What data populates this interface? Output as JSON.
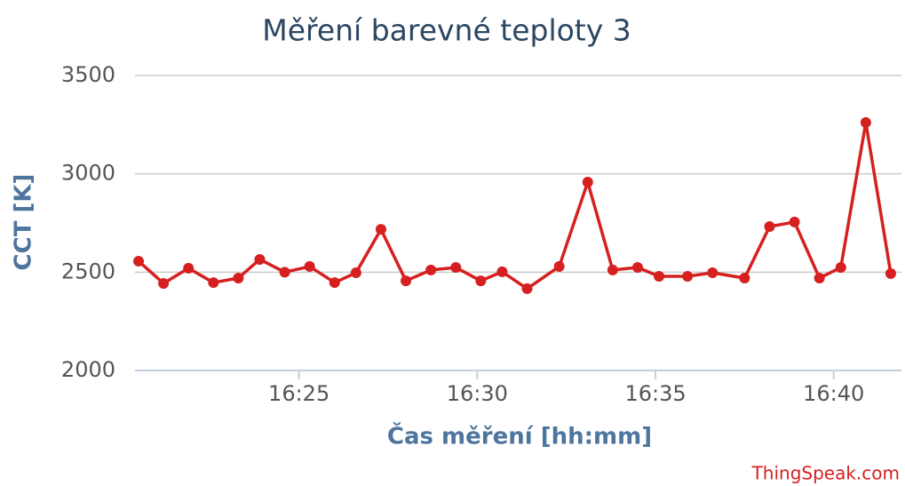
{
  "chart_data": {
    "type": "line",
    "title": "Měření barevné teploty 3",
    "x_label": "Čas měření [hh:mm]",
    "y_label": "CCT [K]",
    "credit": "ThingSpeak.com",
    "x": [
      980.5,
      981.2,
      981.9,
      982.6,
      983.3,
      983.9,
      984.6,
      985.3,
      986.0,
      986.6,
      987.3,
      988.0,
      988.7,
      989.4,
      990.1,
      990.7,
      991.4,
      992.3,
      993.1,
      993.8,
      994.5,
      995.1,
      995.9,
      996.6,
      997.5,
      998.2,
      998.9,
      999.6,
      1000.2,
      1000.9,
      1001.6
    ],
    "series": [
      {
        "name": "CCT",
        "color": "#d62020",
        "values": [
          2556,
          2443,
          2520,
          2447,
          2470,
          2565,
          2500,
          2529,
          2447,
          2497,
          2718,
          2456,
          2511,
          2524,
          2456,
          2502,
          2416,
          2529,
          2958,
          2511,
          2524,
          2479,
          2479,
          2497,
          2470,
          2732,
          2755,
          2470,
          2524,
          3261,
          2493
        ]
      }
    ],
    "xlim": [
      980.4,
      1001.9
    ],
    "xticks": [
      {
        "value": 985,
        "label": "16:25"
      },
      {
        "value": 990,
        "label": "16:30"
      },
      {
        "value": 995,
        "label": "16:35"
      },
      {
        "value": 1000,
        "label": "16:40"
      }
    ],
    "ylim": [
      2000,
      3500
    ],
    "yticks": [
      2000,
      2500,
      3000,
      3500
    ],
    "grid": true
  }
}
